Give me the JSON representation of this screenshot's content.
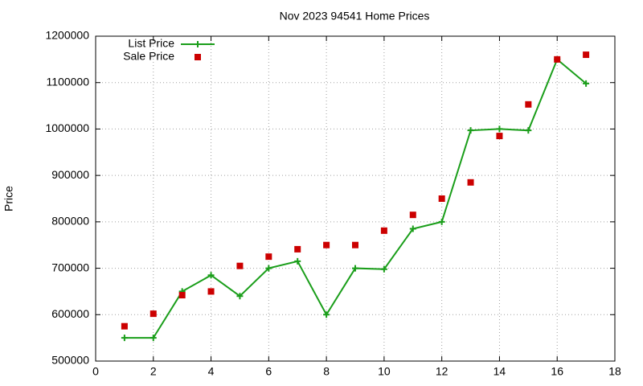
{
  "chart_data": {
    "type": "line",
    "title": "Nov 2023 94541 Home Prices",
    "y_label": "Price",
    "x": [
      1,
      2,
      3,
      4,
      5,
      6,
      7,
      8,
      9,
      10,
      11,
      12,
      13,
      14,
      15,
      16,
      17
    ],
    "series": [
      {
        "name": "List Price",
        "color": "#1a9e1a",
        "style": "linespoints",
        "values": [
          550000,
          550000,
          650000,
          685000,
          640000,
          700000,
          715000,
          600000,
          700000,
          698000,
          785000,
          800000,
          997000,
          1000000,
          997000,
          1150000,
          1098000
        ]
      },
      {
        "name": "Sale Price",
        "color": "#cc0000",
        "style": "points",
        "values": [
          575000,
          602000,
          642000,
          650000,
          705000,
          725000,
          741000,
          750000,
          750000,
          781000,
          815000,
          850000,
          885000,
          985000,
          1053000,
          1150000,
          1160000
        ]
      }
    ],
    "xlim": [
      0,
      18
    ],
    "xticks": [
      0,
      2,
      4,
      6,
      8,
      10,
      12,
      14,
      16,
      18
    ],
    "ylim": [
      500000,
      1200000
    ],
    "yticks": [
      500000,
      600000,
      700000,
      800000,
      900000,
      1000000,
      1100000,
      1200000
    ],
    "grid": true,
    "legend": "top-left"
  }
}
